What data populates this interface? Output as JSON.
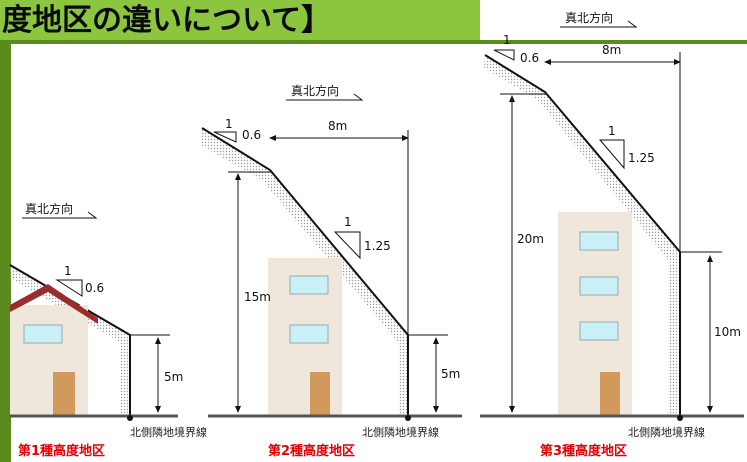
{
  "header": {
    "title_fragment": "度地区の違いについて】"
  },
  "north_direction_label": "真北方向",
  "boundary_label": "北側隣地境界線",
  "colors": {
    "frame_green": "#5b8a1e",
    "title_bar_green": "#8cc63f",
    "zone_label_red": "#e60000",
    "wall_beige": "#efe7dc",
    "window_blue": "#c9f0f7",
    "door_brown": "#d19a5c",
    "roof_red": "#9b2c2c"
  },
  "zones": [
    {
      "name": "第1種高度地区",
      "slope": {
        "rise": "1",
        "run": "0.6"
      },
      "height_label": "5m"
    },
    {
      "name": "第2種高度地区",
      "slope1": {
        "rise": "1",
        "run": "0.6"
      },
      "slope2": {
        "rise": "1",
        "run": "1.25"
      },
      "distance_label": "8m",
      "max_height_label": "15m",
      "boundary_height_label": "5m"
    },
    {
      "name": "第3種高度地区",
      "slope1": {
        "rise": "1",
        "run": "0.6"
      },
      "slope2": {
        "rise": "1",
        "run": "1.25"
      },
      "distance_label": "8m",
      "max_height_label": "20m",
      "boundary_height_label": "10m"
    }
  ]
}
